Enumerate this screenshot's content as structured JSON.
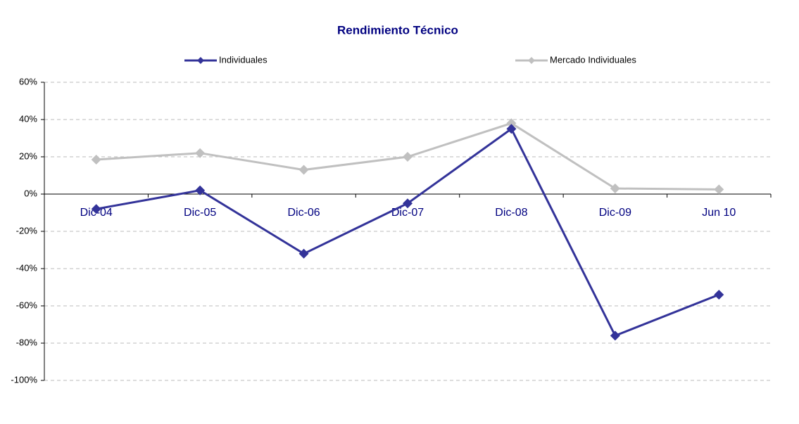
{
  "chart_data": {
    "type": "line",
    "title": "Rendimiento Técnico",
    "categories": [
      "Dic-04",
      "Dic-05",
      "Dic-06",
      "Dic-07",
      "Dic-08",
      "Dic-09",
      "Jun 10"
    ],
    "series": [
      {
        "name": "Individuales",
        "color": "#333399",
        "values": [
          -8,
          2,
          -32,
          -5,
          35,
          -76,
          -54
        ]
      },
      {
        "name": "Mercado Individuales",
        "color": "#c0c0c0",
        "values": [
          18.5,
          22,
          13,
          20,
          38,
          3,
          2.5
        ]
      }
    ],
    "ylim": [
      -100,
      60
    ],
    "yticks": [
      {
        "value": -100,
        "label": "-100%"
      },
      {
        "value": -80,
        "label": "-80%"
      },
      {
        "value": -60,
        "label": "-60%"
      },
      {
        "value": -40,
        "label": "-40%"
      },
      {
        "value": -20,
        "label": "-20%"
      },
      {
        "value": 0,
        "label": "0%"
      },
      {
        "value": 20,
        "label": "20%"
      },
      {
        "value": 40,
        "label": "40%"
      },
      {
        "value": 60,
        "label": "60%"
      }
    ],
    "grid": true
  }
}
